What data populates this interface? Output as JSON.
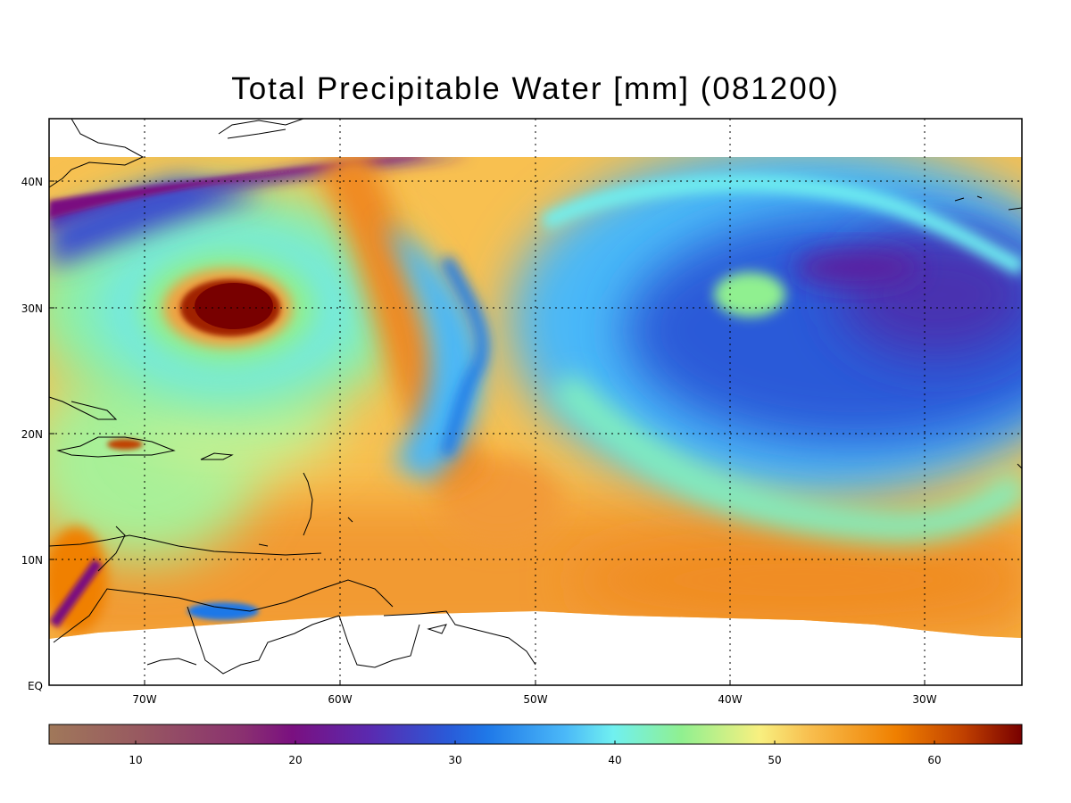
{
  "title": "Total Precipitable Water [mm]  (081200)",
  "lat_labels": [
    "40N",
    "30N",
    "20N",
    "10N",
    "EQ"
  ],
  "lon_labels": [
    "70W",
    "60W",
    "50W",
    "40W",
    "30W"
  ],
  "colorbar": {
    "ticks": [
      "10",
      "20",
      "30",
      "40",
      "50",
      "60"
    ],
    "range": [
      5,
      66
    ],
    "colors": [
      "#a0785a",
      "#8a3070",
      "#7a1080",
      "#4a3ac0",
      "#1f78e8",
      "#4ab8f8",
      "#70f0f0",
      "#90f090",
      "#f8f080",
      "#f8c050",
      "#f08000",
      "#c04000",
      "#780000"
    ]
  },
  "map": {
    "extent_lon": [
      -75,
      -25
    ],
    "extent_lat": [
      0,
      45
    ],
    "grid": "dotted",
    "coastlines": true
  }
}
